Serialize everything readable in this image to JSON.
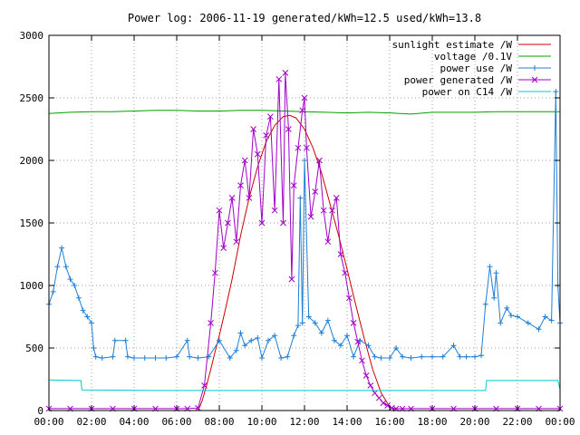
{
  "chart_data": {
    "type": "line",
    "title": "Power log: 2006-11-19 generated/kWh=12.5 used/kWh=13.8",
    "xlabel": "",
    "ylabel": "",
    "x_unit": "hours",
    "xlim": [
      0,
      24
    ],
    "ylim": [
      0,
      3000
    ],
    "x_ticks": [
      0,
      2,
      4,
      6,
      8,
      10,
      12,
      14,
      16,
      18,
      20,
      22,
      24
    ],
    "x_tick_labels": [
      "00:00",
      "02:00",
      "04:00",
      "06:00",
      "08:00",
      "10:00",
      "12:00",
      "14:00",
      "16:00",
      "18:00",
      "20:00",
      "22:00",
      "00:00"
    ],
    "y_ticks": [
      0,
      500,
      1000,
      1500,
      2000,
      2500,
      3000
    ],
    "y_tick_labels": [
      "0",
      "500",
      "1000",
      "1500",
      "2000",
      "2500",
      "3000"
    ],
    "grid": true,
    "legend_position": "top-right",
    "series": [
      {
        "name": "sunlight estimate /W",
        "color": "#cc0000",
        "marker": "none",
        "x": [
          7.0,
          7.2,
          7.4,
          7.6,
          7.8,
          8.0,
          8.3,
          8.6,
          9.0,
          9.4,
          9.8,
          10.2,
          10.6,
          11.0,
          11.3,
          11.6,
          12.0,
          12.4,
          12.8,
          13.2,
          13.6,
          14.0,
          14.4,
          14.8,
          15.2,
          15.6,
          16.0,
          16.3
        ],
        "y": [
          0,
          80,
          200,
          330,
          470,
          600,
          820,
          1050,
          1400,
          1700,
          1950,
          2150,
          2280,
          2350,
          2360,
          2340,
          2250,
          2100,
          1900,
          1650,
          1400,
          1130,
          850,
          580,
          330,
          140,
          30,
          0
        ]
      },
      {
        "name": "voltage /0.1V",
        "color": "#00a000",
        "marker": "none",
        "x": [
          0,
          1,
          2,
          3,
          4,
          5,
          6,
          7,
          8,
          9,
          10,
          11,
          12,
          13,
          14,
          15,
          16,
          17,
          18,
          19,
          20,
          21,
          22,
          23,
          24
        ],
        "y": [
          2375,
          2385,
          2390,
          2390,
          2395,
          2400,
          2400,
          2395,
          2395,
          2400,
          2400,
          2395,
          2390,
          2385,
          2380,
          2385,
          2380,
          2370,
          2385,
          2385,
          2385,
          2390,
          2390,
          2390,
          2390
        ]
      },
      {
        "name": "power use /W",
        "color": "#1f7fd6",
        "marker": "plus",
        "x": [
          0.0,
          0.2,
          0.4,
          0.6,
          0.8,
          1.0,
          1.2,
          1.4,
          1.6,
          1.8,
          2.0,
          2.1,
          2.2,
          2.5,
          3.0,
          3.1,
          3.6,
          3.7,
          4.0,
          4.5,
          5.0,
          5.5,
          6.0,
          6.5,
          6.6,
          7.0,
          7.5,
          8.0,
          8.5,
          8.8,
          9.0,
          9.2,
          9.5,
          9.8,
          10.0,
          10.3,
          10.6,
          10.9,
          11.2,
          11.5,
          11.7,
          11.8,
          11.9,
          12.0,
          12.2,
          12.5,
          12.8,
          13.1,
          13.4,
          13.7,
          14.0,
          14.3,
          14.6,
          15.0,
          15.3,
          15.6,
          16.0,
          16.3,
          16.6,
          17.0,
          17.5,
          18.0,
          18.5,
          19.0,
          19.3,
          19.6,
          20.0,
          20.3,
          20.5,
          20.7,
          20.9,
          21.0,
          21.2,
          21.5,
          21.7,
          22.0,
          22.5,
          23.0,
          23.3,
          23.6,
          23.8,
          23.9,
          24.0
        ],
        "y": [
          850,
          950,
          1150,
          1300,
          1150,
          1050,
          1000,
          900,
          800,
          750,
          700,
          500,
          430,
          420,
          430,
          560,
          560,
          430,
          420,
          420,
          420,
          420,
          430,
          560,
          430,
          420,
          430,
          560,
          420,
          480,
          620,
          520,
          560,
          580,
          420,
          560,
          600,
          420,
          430,
          600,
          680,
          1700,
          700,
          2000,
          750,
          700,
          620,
          720,
          560,
          520,
          600,
          430,
          560,
          520,
          430,
          420,
          420,
          500,
          430,
          420,
          430,
          430,
          430,
          520,
          430,
          430,
          430,
          440,
          850,
          1150,
          900,
          1100,
          700,
          820,
          760,
          750,
          700,
          650,
          750,
          720,
          2550,
          1000,
          700
        ]
      },
      {
        "name": "power generated /W",
        "color": "#a000c8",
        "marker": "x",
        "x": [
          0.0,
          1.0,
          2.0,
          3.0,
          4.0,
          5.0,
          6.0,
          6.5,
          7.0,
          7.3,
          7.6,
          7.8,
          8.0,
          8.2,
          8.4,
          8.6,
          8.8,
          9.0,
          9.2,
          9.4,
          9.6,
          9.8,
          10.0,
          10.2,
          10.4,
          10.6,
          10.8,
          11.0,
          11.1,
          11.25,
          11.4,
          11.5,
          11.7,
          11.9,
          12.0,
          12.1,
          12.3,
          12.5,
          12.7,
          12.9,
          13.1,
          13.3,
          13.5,
          13.7,
          13.9,
          14.1,
          14.3,
          14.5,
          14.7,
          14.9,
          15.1,
          15.3,
          15.5,
          15.7,
          15.9,
          16.1,
          16.3,
          16.6,
          17.0,
          18.0,
          19.0,
          20.0,
          21.0,
          22.0,
          23.0,
          24.0
        ],
        "y": [
          15,
          15,
          15,
          15,
          15,
          15,
          15,
          15,
          20,
          200,
          700,
          1100,
          1600,
          1300,
          1500,
          1700,
          1350,
          1800,
          2000,
          1700,
          2250,
          2050,
          1500,
          2200,
          2350,
          1600,
          2650,
          1500,
          2700,
          2250,
          1050,
          1800,
          2100,
          2400,
          2500,
          2100,
          1550,
          1750,
          2000,
          1600,
          1350,
          1600,
          1700,
          1250,
          1100,
          900,
          700,
          550,
          400,
          280,
          200,
          140,
          100,
          60,
          40,
          20,
          15,
          15,
          15,
          15,
          15,
          15,
          15,
          15,
          15,
          15
        ]
      },
      {
        "name": "power on C14 /W",
        "color": "#00cccc",
        "marker": "none",
        "x": [
          0.0,
          1.5,
          1.55,
          5.0,
          10.0,
          15.0,
          20.5,
          20.55,
          23.9,
          24.0
        ],
        "y": [
          245,
          240,
          165,
          160,
          160,
          160,
          160,
          240,
          240,
          170
        ]
      }
    ]
  }
}
